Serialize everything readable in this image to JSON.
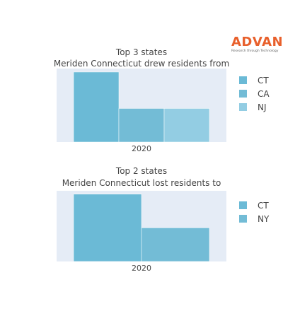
{
  "logo": {
    "brand": "ADVAN",
    "tagline": "Research through Technology"
  },
  "chart_data": [
    {
      "type": "bar",
      "title": "Top 3 states",
      "subtitle": "Meriden Connecticut drew residents from",
      "categories": [
        "2020"
      ],
      "series": [
        {
          "name": "CT",
          "values": [
            1.0
          ],
          "color": "#6bbad6"
        },
        {
          "name": "CA",
          "values": [
            0.48
          ],
          "color": "#73bcd6"
        },
        {
          "name": "NJ",
          "values": [
            0.48
          ],
          "color": "#93cde3"
        }
      ],
      "ylim": [
        0,
        1.05
      ],
      "grid": false,
      "legend": "right"
    },
    {
      "type": "bar",
      "title": "Top 2 states",
      "subtitle": "Meriden Connecticut lost residents to",
      "categories": [
        "2020"
      ],
      "series": [
        {
          "name": "CT",
          "values": [
            1.0
          ],
          "color": "#6bbad6"
        },
        {
          "name": "NY",
          "values": [
            0.5
          ],
          "color": "#73bcd6"
        }
      ],
      "ylim": [
        0,
        1.05
      ],
      "grid": false,
      "legend": "right"
    }
  ]
}
